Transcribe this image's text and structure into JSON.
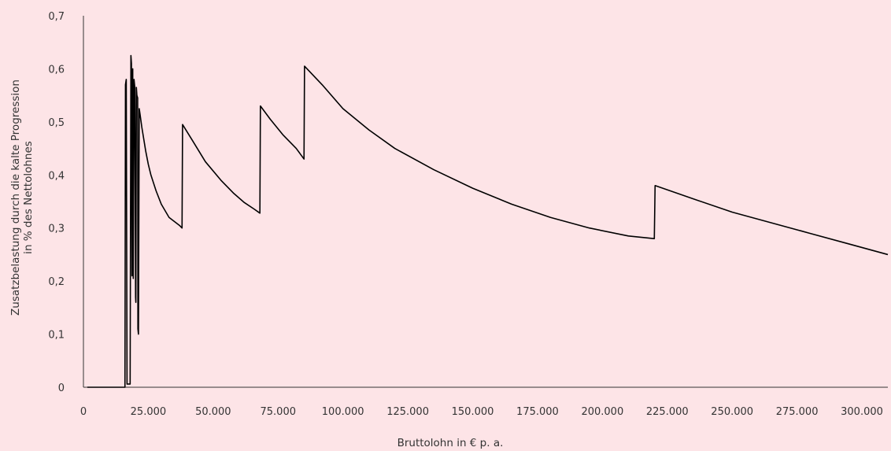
{
  "chart_data": {
    "type": "line",
    "xlabel": "Bruttolohn in € p. a.",
    "ylabel_line1": "Zusatzbelastung durch die kalte Progression",
    "ylabel_line2": "in % des Nettolohnes",
    "xlim": [
      0,
      310000
    ],
    "ylim": [
      0,
      0.7
    ],
    "grid": false,
    "x_ticks": [
      0,
      25000,
      50000,
      75000,
      100000,
      125000,
      150000,
      175000,
      200000,
      225000,
      250000,
      275000,
      300000
    ],
    "x_tick_labels": [
      "0",
      "25.000",
      "50.000",
      "75.000",
      "100.000",
      "125.000",
      "150.000",
      "175.000",
      "200.000",
      "225.000",
      "250.000",
      "275.000",
      "300.000"
    ],
    "y_ticks": [
      0,
      0.1,
      0.2,
      0.3,
      0.4,
      0.5,
      0.6,
      0.7
    ],
    "y_tick_labels": [
      "0",
      "0,1",
      "0,2",
      "0,3",
      "0,4",
      "0,5",
      "0,6",
      "0,7"
    ],
    "line_color": "#000000",
    "background_color": "#fde4e7",
    "series": [
      {
        "x": [
          1500,
          16000,
          16200,
          16500,
          16800,
          17100,
          17300,
          18000,
          18300,
          18500,
          18700,
          19000,
          19200,
          19500,
          19800,
          20100,
          20200,
          20400,
          20600,
          20900,
          21000,
          21200,
          21500,
          21800,
          22500,
          23000,
          24000,
          25000,
          26000,
          27000,
          28000,
          30000,
          33000,
          37000,
          38000,
          38200,
          42000,
          47000,
          53000,
          58000,
          62000,
          66000,
          68000,
          68200,
          72000,
          77000,
          82000,
          85000,
          85200,
          92000,
          100000,
          110000,
          120000,
          135000,
          150000,
          165000,
          180000,
          195000,
          210000,
          220000,
          220300,
          235000,
          250000,
          265000,
          280000,
          295000,
          310000
        ],
        "y": [
          0,
          0,
          0.57,
          0.58,
          0.006,
          0.006,
          0.006,
          0.006,
          0.625,
          0.61,
          0.21,
          0.6,
          0.205,
          0.58,
          0.565,
          0.17,
          0.16,
          0.565,
          0.55,
          0.545,
          0.11,
          0.1,
          0.525,
          0.515,
          0.49,
          0.475,
          0.445,
          0.42,
          0.4,
          0.385,
          0.37,
          0.345,
          0.32,
          0.305,
          0.3,
          0.495,
          0.465,
          0.425,
          0.39,
          0.365,
          0.348,
          0.335,
          0.328,
          0.53,
          0.505,
          0.475,
          0.45,
          0.43,
          0.605,
          0.57,
          0.525,
          0.485,
          0.45,
          0.41,
          0.375,
          0.345,
          0.32,
          0.3,
          0.285,
          0.28,
          0.38,
          0.355,
          0.33,
          0.31,
          0.29,
          0.27,
          0.25
        ]
      }
    ]
  }
}
